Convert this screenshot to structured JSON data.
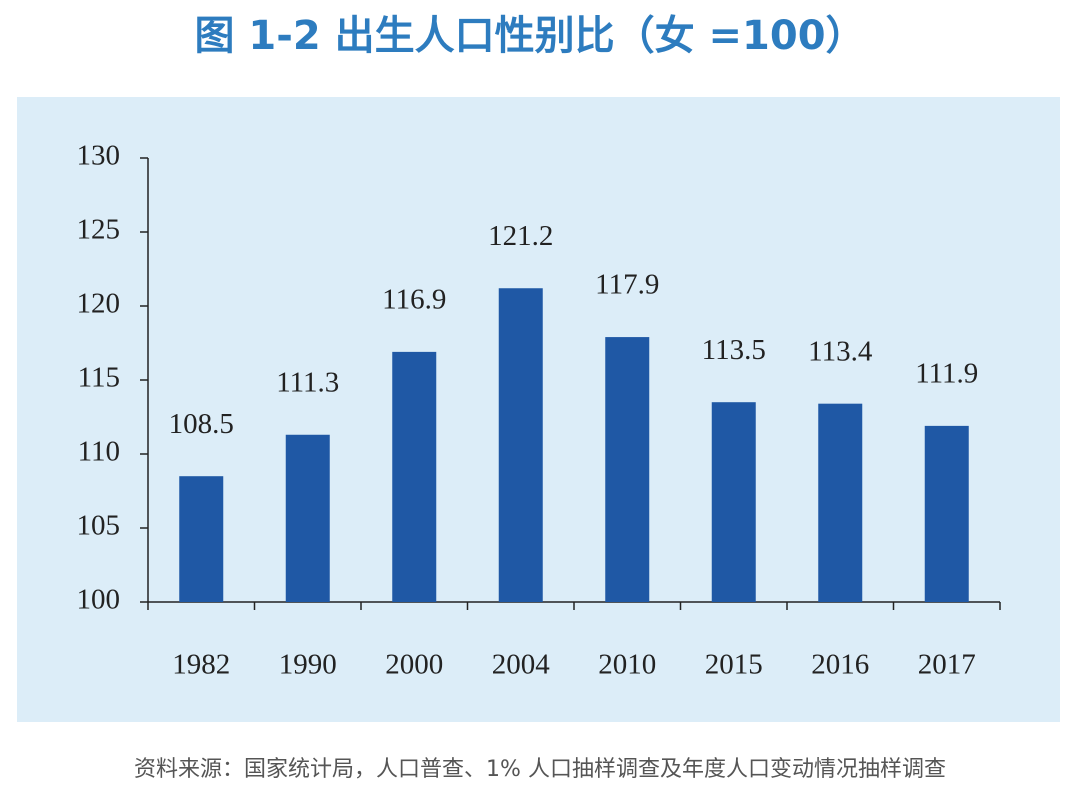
{
  "chart_data": {
    "type": "bar",
    "title": "图 1-2  出生人口性别比（女 =100）",
    "source": "资料来源：国家统计局，人口普查、1% 人口抽样调查及年度人口变动情况抽样调查",
    "categories": [
      "1982",
      "1990",
      "2000",
      "2004",
      "2010",
      "2015",
      "2016",
      "2017"
    ],
    "values": [
      108.5,
      111.3,
      116.9,
      121.2,
      117.9,
      113.5,
      113.4,
      111.9
    ],
    "color": "#1f58a5",
    "ylim": [
      100,
      130
    ],
    "yticks": [
      100,
      105,
      110,
      115,
      120,
      125,
      130
    ],
    "grid": false
  }
}
